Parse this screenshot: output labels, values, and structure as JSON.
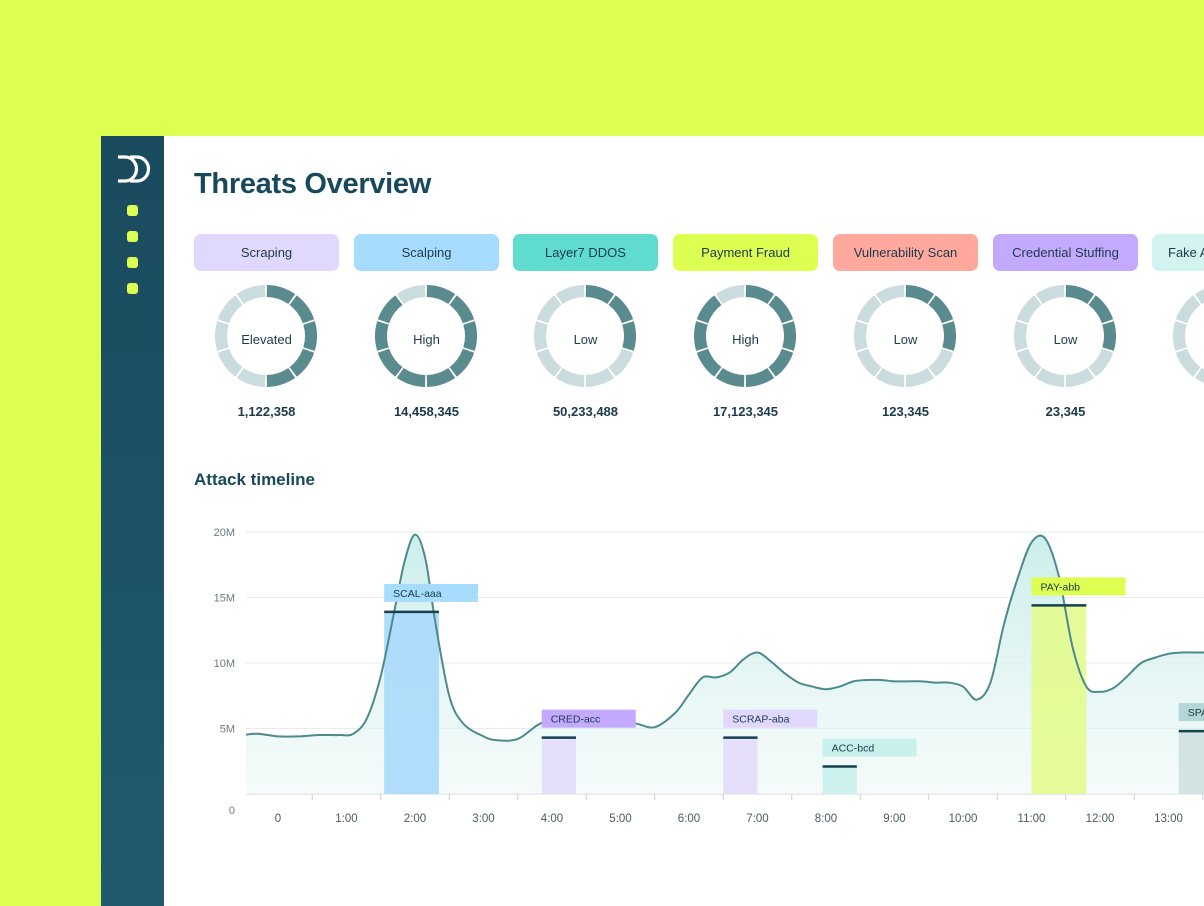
{
  "page": {
    "title": "Threats Overview",
    "section_title": "Attack timeline"
  },
  "threats": [
    {
      "tab": "Scraping",
      "level": "Elevated",
      "count": "1,122,358",
      "tab_color": "#e1d8fd",
      "filled": 5,
      "fill_color": "#5a8b8e",
      "empty_color": "#cbdcde"
    },
    {
      "tab": "Scalping",
      "level": "High",
      "count": "14,458,345",
      "tab_color": "#a7dcff",
      "filled": 9,
      "fill_color": "#5a8b8e",
      "empty_color": "#cbdcde"
    },
    {
      "tab": "Layer7 DDOS",
      "level": "Low",
      "count": "50,233,488",
      "tab_color": "#5fdccd",
      "filled": 3,
      "fill_color": "#5a8b8e",
      "empty_color": "#cbdcde"
    },
    {
      "tab": "Payment Fraud",
      "level": "High",
      "count": "17,123,345",
      "tab_color": "#dcff52",
      "filled": 9,
      "fill_color": "#5a8b8e",
      "empty_color": "#cbdcde"
    },
    {
      "tab": "Vulnerability Scan",
      "level": "Low",
      "count": "123,345",
      "tab_color": "#ffa99e",
      "filled": 3,
      "fill_color": "#5a8b8e",
      "empty_color": "#cbdcde"
    },
    {
      "tab": "Credential Stuffing",
      "level": "Low",
      "count": "23,345",
      "tab_color": "#c4aaff",
      "filled": 3,
      "fill_color": "#5a8b8e",
      "empty_color": "#cbdcde"
    },
    {
      "tab": "Fake Accounts",
      "level": "",
      "count": "",
      "tab_color": "#d2f3f0",
      "filled": 3,
      "fill_color": "#5a8b8e",
      "empty_color": "#cbdcde"
    }
  ],
  "chart_data": {
    "type": "area",
    "title": "Attack timeline",
    "xlabel": "",
    "ylabel": "",
    "y_ticks": [
      "0",
      "5M",
      "10M",
      "15M",
      "20M"
    ],
    "ylim": [
      0,
      20
    ],
    "x_ticks": [
      "0",
      "1:00",
      "2:00",
      "3:00",
      "4:00",
      "5:00",
      "6:00",
      "7:00",
      "8:00",
      "9:00",
      "10:00",
      "11:00",
      "12:00",
      "13:00"
    ],
    "grid": true,
    "line_color": "#4d8a8f",
    "series": [
      {
        "x": [
          -0.5,
          -0.3,
          0,
          0.3,
          0.6,
          0.9,
          1.1,
          1.3,
          1.5,
          1.7,
          1.85,
          2.0,
          2.15,
          2.3,
          2.5,
          2.7,
          3.0,
          3.2,
          3.5,
          3.8,
          4.0,
          4.3,
          4.6,
          4.9,
          5.2,
          5.5,
          5.8,
          6.0,
          6.2,
          6.4,
          6.6,
          6.8,
          7.0,
          7.2,
          7.4,
          7.6,
          7.8,
          8.0,
          8.2,
          8.4,
          8.6,
          8.8,
          9.0,
          9.2,
          9.4,
          9.6,
          9.8,
          10.0,
          10.2,
          10.4,
          10.6,
          10.8,
          11.0,
          11.2,
          11.4,
          11.6,
          11.8,
          12.0,
          12.2,
          12.4,
          12.6,
          12.8,
          13.0,
          13.2,
          13.4,
          13.6
        ],
        "y": [
          4.5,
          4.6,
          4.4,
          4.4,
          4.5,
          4.5,
          4.6,
          5.8,
          9,
          14,
          17.8,
          19.8,
          18,
          13,
          7.5,
          5.4,
          4.4,
          4.1,
          4.2,
          5.3,
          5.6,
          5.2,
          5.2,
          5.3,
          5.4,
          5.1,
          6.2,
          7.6,
          8.9,
          8.9,
          9.3,
          10.3,
          10.8,
          10.1,
          9.2,
          8.5,
          8.2,
          8,
          8.2,
          8.6,
          8.7,
          8.7,
          8.6,
          8.6,
          8.6,
          8.5,
          8.5,
          8.2,
          7.2,
          8.5,
          13,
          16.5,
          19.2,
          19.5,
          16.6,
          11.2,
          8.2,
          7.8,
          8.1,
          9,
          10,
          10.4,
          10.7,
          10.8,
          10.8,
          10.8
        ]
      }
    ],
    "attacks": [
      {
        "id": "SCAL-aaa",
        "start": 1.55,
        "end": 2.35,
        "level": 13.9,
        "color": "#a7dcff",
        "fill": "#a8d9fb"
      },
      {
        "id": "CRED-acc",
        "start": 3.85,
        "end": 4.35,
        "level": 4.3,
        "color": "#c4aaff",
        "fill": "#e2dcfb"
      },
      {
        "id": "SCRAP-aba",
        "start": 6.5,
        "end": 7.0,
        "level": 4.3,
        "color": "#e1d8fd",
        "fill": "#e3dcfb"
      },
      {
        "id": "ACC-bcd",
        "start": 7.95,
        "end": 8.45,
        "level": 2.1,
        "color": "#c9f1ec",
        "fill": "#c9f1ec"
      },
      {
        "id": "PAY-abb",
        "start": 11.0,
        "end": 11.8,
        "level": 14.4,
        "color": "#dcff52",
        "fill": "#e3fb8e"
      },
      {
        "id": "SPAM-abc",
        "start": 13.15,
        "end": 13.9,
        "level": 4.8,
        "color": "#b4d6d6",
        "fill": "#cfe0e0"
      }
    ]
  },
  "icons": {
    "logo": "dd-logo-icon",
    "nav": [
      "nav-dot-icon",
      "nav-dot-icon",
      "nav-dot-icon",
      "nav-dot-icon"
    ]
  }
}
